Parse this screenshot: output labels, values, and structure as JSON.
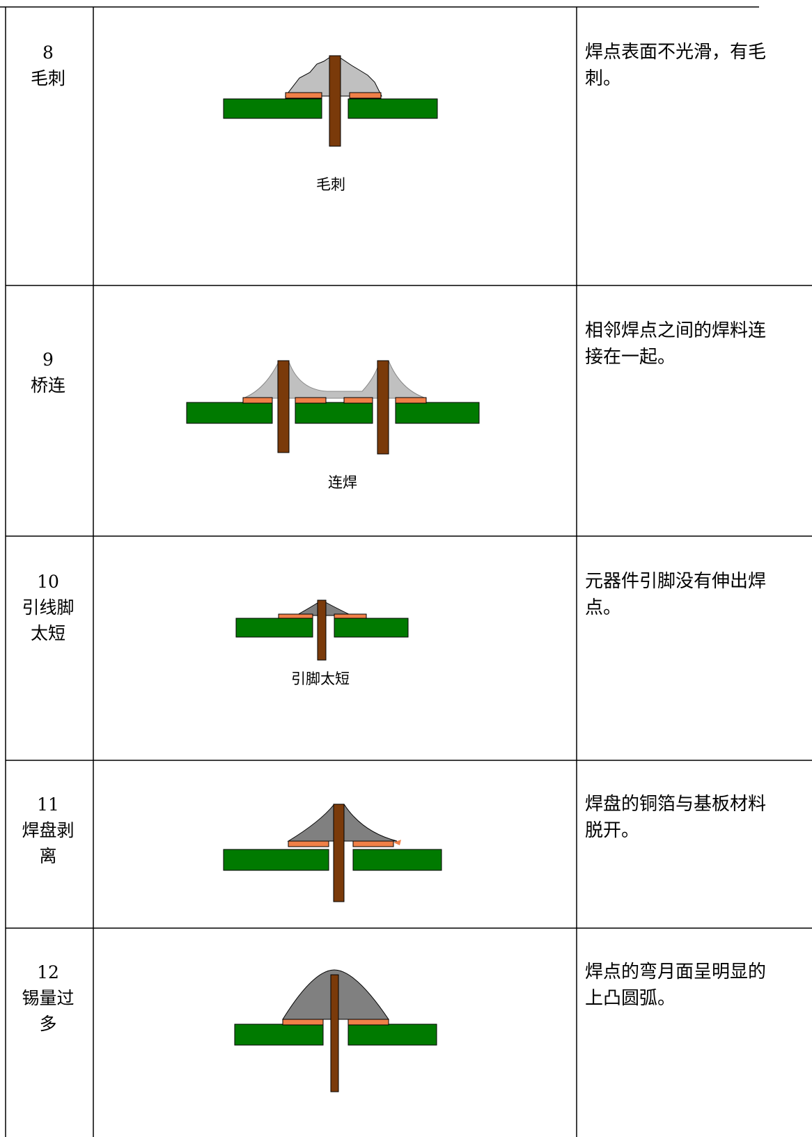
{
  "table": {
    "rows": [
      {
        "number": "8",
        "name": "毛刺",
        "caption": "毛刺",
        "description": "焊点表面不光滑，有毛刺。"
      },
      {
        "number": "9",
        "name": "桥连",
        "caption": "连焊",
        "description": "相邻焊点之间的焊料连接在一起。"
      },
      {
        "number": "10",
        "name": "引线脚太短",
        "caption": "引脚太短",
        "description": "元器件引脚没有伸出焊点。"
      },
      {
        "number": "11",
        "name": "焊盘剥离",
        "description": "焊盘的铜箔与基板材料脱开。"
      },
      {
        "number": "12",
        "name": "锡量过多",
        "description": "焊点的弯月面呈明显的上凸圆弧。"
      }
    ]
  }
}
